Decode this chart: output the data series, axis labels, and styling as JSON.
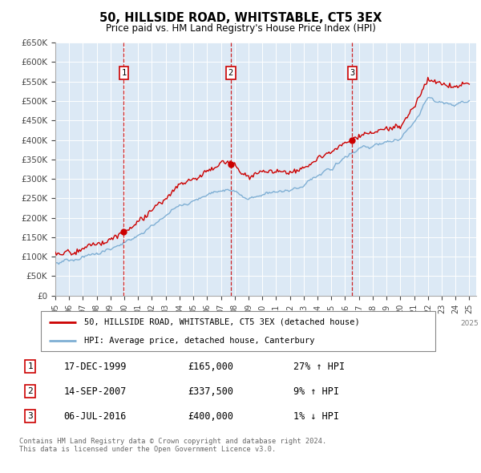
{
  "title": "50, HILLSIDE ROAD, WHITSTABLE, CT5 3EX",
  "subtitle": "Price paid vs. HM Land Registry's House Price Index (HPI)",
  "footer": "Contains HM Land Registry data © Crown copyright and database right 2024.\nThis data is licensed under the Open Government Licence v3.0.",
  "legend_line1": "50, HILLSIDE ROAD, WHITSTABLE, CT5 3EX (detached house)",
  "legend_line2": "HPI: Average price, detached house, Canterbury",
  "purchases": [
    {
      "num": 1,
      "date": "17-DEC-1999",
      "price": "£165,000",
      "hpi": "27% ↑ HPI",
      "year": 1999.96
    },
    {
      "num": 2,
      "date": "14-SEP-2007",
      "price": "£337,500",
      "hpi": "9% ↑ HPI",
      "year": 2007.71
    },
    {
      "num": 3,
      "date": "06-JUL-2016",
      "price": "£400,000",
      "hpi": "1% ↓ HPI",
      "year": 2016.51
    }
  ],
  "purchase_prices": [
    165000,
    337500,
    400000
  ],
  "plot_bg": "#dce9f5",
  "red_color": "#cc0000",
  "blue_color": "#7fafd4",
  "xlim": [
    1995.0,
    2025.5
  ],
  "ylim": [
    0,
    650000
  ],
  "yticks": [
    0,
    50000,
    100000,
    150000,
    200000,
    250000,
    300000,
    350000,
    400000,
    450000,
    500000,
    550000,
    600000,
    650000
  ],
  "hpi_years": [
    1995.0,
    1995.083,
    1995.167,
    1995.25,
    1995.333,
    1995.417,
    1995.5,
    1995.583,
    1995.667,
    1995.75,
    1995.833,
    1995.917,
    1996.0,
    1996.083,
    1996.167,
    1996.25,
    1996.333,
    1996.417,
    1996.5,
    1996.583,
    1996.667,
    1996.75,
    1996.833,
    1996.917,
    1997.0,
    1997.083,
    1997.167,
    1997.25,
    1997.333,
    1997.417,
    1997.5,
    1997.583,
    1997.667,
    1997.75,
    1997.833,
    1997.917,
    1998.0,
    1998.083,
    1998.167,
    1998.25,
    1998.333,
    1998.417,
    1998.5,
    1998.583,
    1998.667,
    1998.75,
    1998.833,
    1998.917,
    1999.0,
    1999.083,
    1999.167,
    1999.25,
    1999.333,
    1999.417,
    1999.5,
    1999.583,
    1999.667,
    1999.75,
    1999.833,
    1999.917,
    2000.0,
    2000.083,
    2000.167,
    2000.25,
    2000.333,
    2000.417,
    2000.5,
    2000.583,
    2000.667,
    2000.75,
    2000.833,
    2000.917,
    2001.0,
    2001.083,
    2001.167,
    2001.25,
    2001.333,
    2001.417,
    2001.5,
    2001.583,
    2001.667,
    2001.75,
    2001.833,
    2001.917,
    2002.0,
    2002.083,
    2002.167,
    2002.25,
    2002.333,
    2002.417,
    2002.5,
    2002.583,
    2002.667,
    2002.75,
    2002.833,
    2002.917,
    2003.0,
    2003.083,
    2003.167,
    2003.25,
    2003.333,
    2003.417,
    2003.5,
    2003.583,
    2003.667,
    2003.75,
    2003.833,
    2003.917,
    2004.0,
    2004.083,
    2004.167,
    2004.25,
    2004.333,
    2004.417,
    2004.5,
    2004.583,
    2004.667,
    2004.75,
    2004.833,
    2004.917,
    2005.0,
    2005.083,
    2005.167,
    2005.25,
    2005.333,
    2005.417,
    2005.5,
    2005.583,
    2005.667,
    2005.75,
    2005.833,
    2005.917,
    2006.0,
    2006.083,
    2006.167,
    2006.25,
    2006.333,
    2006.417,
    2006.5,
    2006.583,
    2006.667,
    2006.75,
    2006.833,
    2006.917,
    2007.0,
    2007.083,
    2007.167,
    2007.25,
    2007.333,
    2007.417,
    2007.5,
    2007.583,
    2007.667,
    2007.75,
    2007.833,
    2007.917,
    2008.0,
    2008.083,
    2008.167,
    2008.25,
    2008.333,
    2008.417,
    2008.5,
    2008.583,
    2008.667,
    2008.75,
    2008.833,
    2008.917,
    2009.0,
    2009.083,
    2009.167,
    2009.25,
    2009.333,
    2009.417,
    2009.5,
    2009.583,
    2009.667,
    2009.75,
    2009.833,
    2009.917,
    2010.0,
    2010.083,
    2010.167,
    2010.25,
    2010.333,
    2010.417,
    2010.5,
    2010.583,
    2010.667,
    2010.75,
    2010.833,
    2010.917,
    2011.0,
    2011.083,
    2011.167,
    2011.25,
    2011.333,
    2011.417,
    2011.5,
    2011.583,
    2011.667,
    2011.75,
    2011.833,
    2011.917,
    2012.0,
    2012.083,
    2012.167,
    2012.25,
    2012.333,
    2012.417,
    2012.5,
    2012.583,
    2012.667,
    2012.75,
    2012.833,
    2012.917,
    2013.0,
    2013.083,
    2013.167,
    2013.25,
    2013.333,
    2013.417,
    2013.5,
    2013.583,
    2013.667,
    2013.75,
    2013.833,
    2013.917,
    2014.0,
    2014.083,
    2014.167,
    2014.25,
    2014.333,
    2014.417,
    2014.5,
    2014.583,
    2014.667,
    2014.75,
    2014.833,
    2014.917,
    2015.0,
    2015.083,
    2015.167,
    2015.25,
    2015.333,
    2015.417,
    2015.5,
    2015.583,
    2015.667,
    2015.75,
    2015.833,
    2015.917,
    2016.0,
    2016.083,
    2016.167,
    2016.25,
    2016.333,
    2016.417,
    2016.5,
    2016.583,
    2016.667,
    2016.75,
    2016.833,
    2016.917,
    2017.0,
    2017.083,
    2017.167,
    2017.25,
    2017.333,
    2017.417,
    2017.5,
    2017.583,
    2017.667,
    2017.75,
    2017.833,
    2017.917,
    2018.0,
    2018.083,
    2018.167,
    2018.25,
    2018.333,
    2018.417,
    2018.5,
    2018.583,
    2018.667,
    2018.75,
    2018.833,
    2018.917,
    2019.0,
    2019.083,
    2019.167,
    2019.25,
    2019.333,
    2019.417,
    2019.5,
    2019.583,
    2019.667,
    2019.75,
    2019.833,
    2019.917,
    2020.0,
    2020.083,
    2020.167,
    2020.25,
    2020.333,
    2020.417,
    2020.5,
    2020.583,
    2020.667,
    2020.75,
    2020.833,
    2020.917,
    2021.0,
    2021.083,
    2021.167,
    2021.25,
    2021.333,
    2021.417,
    2021.5,
    2021.583,
    2021.667,
    2021.75,
    2021.833,
    2021.917,
    2022.0,
    2022.083,
    2022.167,
    2022.25,
    2022.333,
    2022.417,
    2022.5,
    2022.583,
    2022.667,
    2022.75,
    2022.833,
    2022.917,
    2023.0,
    2023.083,
    2023.167,
    2023.25,
    2023.333,
    2023.417,
    2023.5,
    2023.583,
    2023.667,
    2023.75,
    2023.833,
    2023.917,
    2024.0,
    2024.083,
    2024.167,
    2024.25,
    2024.333,
    2024.417,
    2024.5,
    2024.583,
    2024.667,
    2024.75,
    2024.833,
    2024.917,
    2025.0
  ]
}
